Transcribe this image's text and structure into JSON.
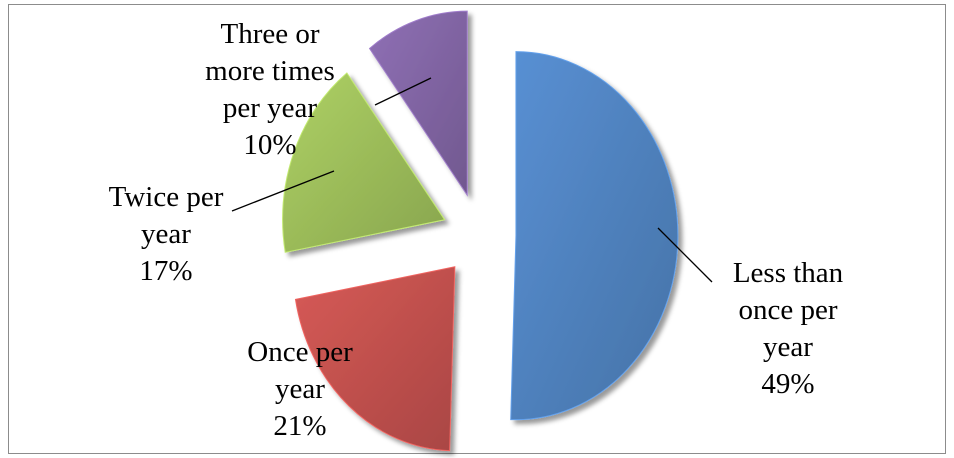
{
  "chart_data": {
    "type": "pie",
    "exploded": true,
    "title": "",
    "slices": [
      {
        "name": "Less than once per year",
        "value": 49,
        "value_label": "49%",
        "label_lines": [
          "Less than",
          "once per",
          "year",
          "49%"
        ],
        "color": "#4f81bd"
      },
      {
        "name": "Once per year",
        "value": 21,
        "value_label": "21%",
        "label_lines": [
          "Once per",
          "year",
          "21%"
        ],
        "color": "#c0504d"
      },
      {
        "name": "Twice per year",
        "value": 17,
        "value_label": "17%",
        "label_lines": [
          "Twice per",
          "year",
          "17%"
        ],
        "color": "#9bbb59"
      },
      {
        "name": "Three or more times per year",
        "value": 10,
        "value_label": "10%",
        "label_lines": [
          "Three or",
          "more times",
          "per year",
          "10%"
        ],
        "color": "#8064a2"
      }
    ]
  }
}
